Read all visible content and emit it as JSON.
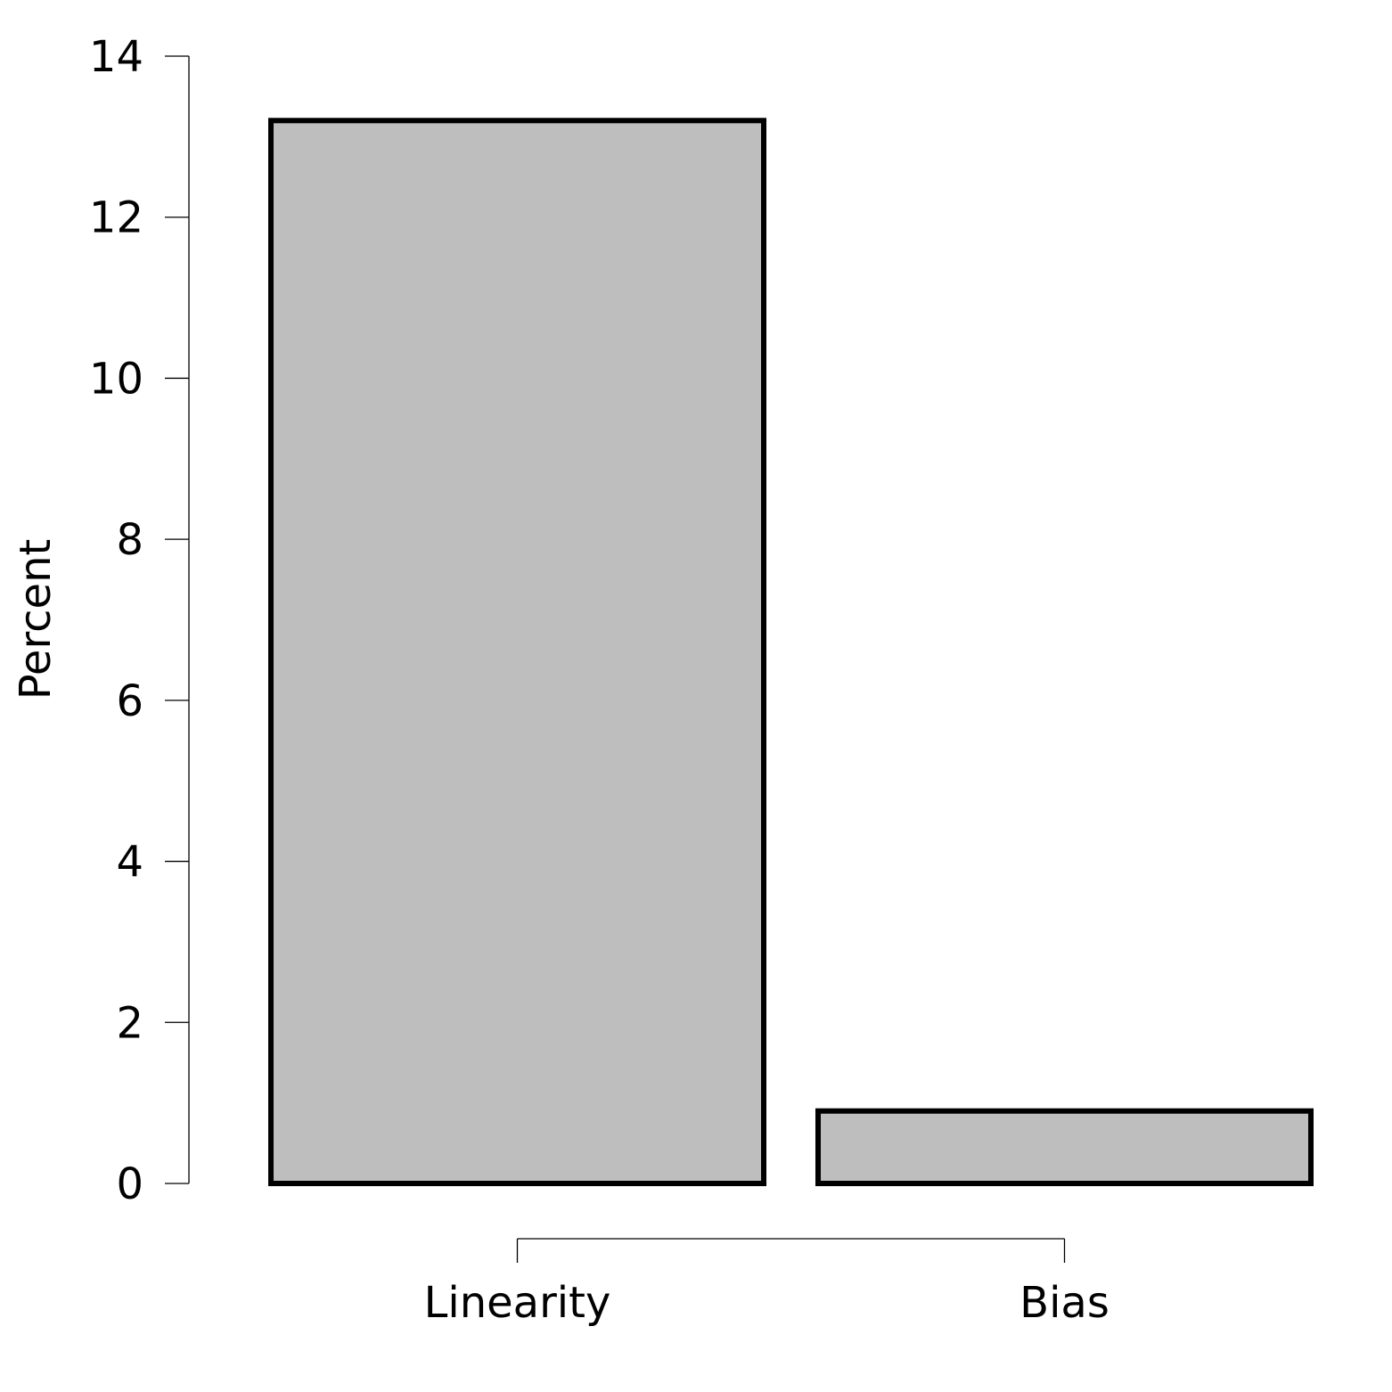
{
  "chart_data": {
    "type": "bar",
    "title": "",
    "xlabel": "",
    "ylabel": "Percent",
    "categories": [
      "Linearity",
      "Bias"
    ],
    "values": [
      13.2,
      0.9
    ],
    "ylim": [
      0,
      14
    ],
    "yticks": [
      0,
      2,
      4,
      6,
      8,
      10,
      12,
      14
    ],
    "grid": false,
    "legend": "none",
    "bar_fill": "#bebebe",
    "bar_stroke": "#000000"
  }
}
